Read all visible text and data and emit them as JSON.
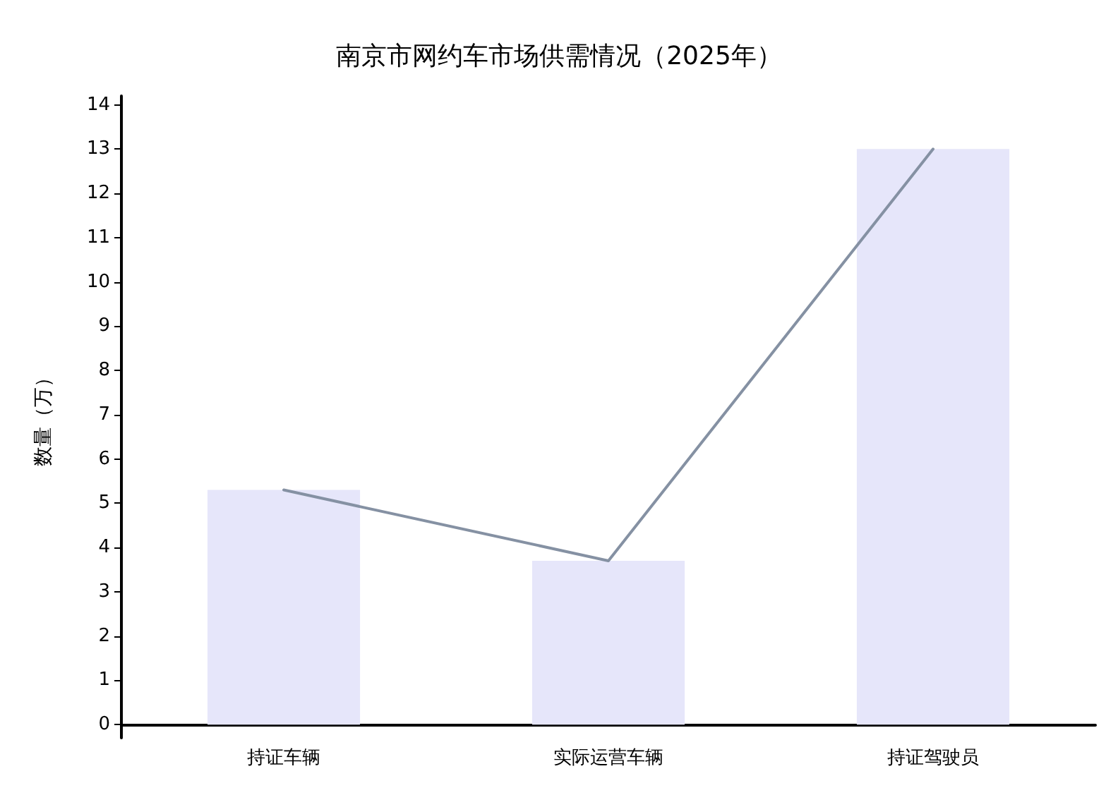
{
  "chart_data": {
    "type": "bar",
    "title": "南京市网约车市场供需情况（2025年）",
    "ylabel": "数量（万）",
    "categories": [
      "持证车辆",
      "实际运营车辆",
      "持证驾驶员"
    ],
    "series": [
      {
        "color": "#e6e6fa",
        "values": [
          5.3,
          3.7,
          13
        ]
      },
      {
        "type": "line",
        "color": "#8591a3",
        "values": [
          5.3,
          3.7,
          13
        ]
      }
    ],
    "ylim": [
      -0.3,
      14.2
    ],
    "yticks": [
      0,
      1,
      2,
      3,
      4,
      5,
      6,
      7,
      8,
      9,
      10,
      11,
      12,
      13,
      14
    ],
    "grid": false,
    "marker": "none",
    "line_style": "solid"
  }
}
